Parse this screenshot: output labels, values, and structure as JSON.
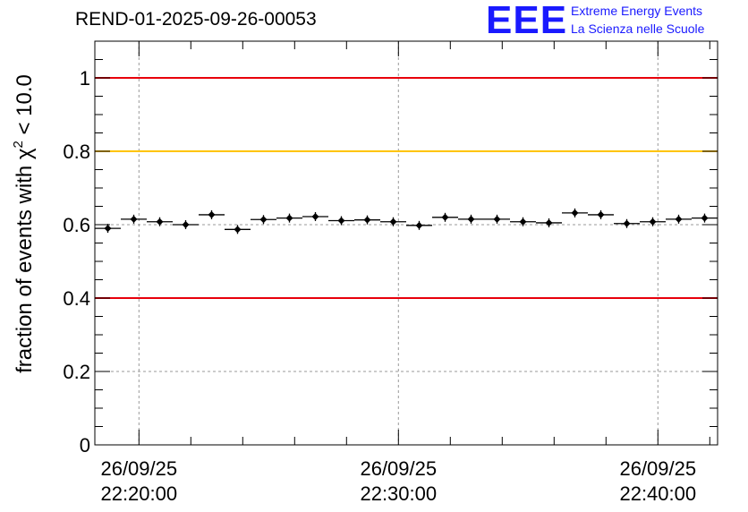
{
  "header": {
    "run_title": "REND-01-2025-09-26-00053",
    "logo_text": "EEE",
    "logo_line1": "Extreme Energy Events",
    "logo_line2": "La Scienza nelle Scuole",
    "logo_color": "#1a1aff"
  },
  "chart_data": {
    "type": "scatter",
    "title": "REND-01-2025-09-26-00053",
    "ylabel_prefix": "fraction of events with ",
    "ylabel_symbol": "χ",
    "ylabel_sup": "2",
    "ylabel_suffix": " < 10.0",
    "xlabel": "",
    "ylim": [
      0,
      1.1
    ],
    "yticks": [
      {
        "value": 0,
        "label": "0"
      },
      {
        "value": 0.2,
        "label": "0.2"
      },
      {
        "value": 0.4,
        "label": "0.4"
      },
      {
        "value": 0.6,
        "label": "0.6"
      },
      {
        "value": 0.8,
        "label": "0.8"
      },
      {
        "value": 1,
        "label": "1"
      }
    ],
    "xlim_minutes": [
      -1.7,
      22.3
    ],
    "xticks": [
      {
        "minutes": 0,
        "date": "26/09/25",
        "time": "22:20:00"
      },
      {
        "minutes": 10,
        "date": "26/09/25",
        "time": "22:30:00"
      },
      {
        "minutes": 20,
        "date": "26/09/25",
        "time": "22:40:00"
      }
    ],
    "x_origin": "22:20:00",
    "grid": true,
    "reference_lines": [
      {
        "value": 1.0,
        "color": "#e8000b",
        "name": "upper-limit"
      },
      {
        "value": 0.8,
        "color": "#ffc400",
        "name": "warning-level"
      },
      {
        "value": 0.4,
        "color": "#e8000b",
        "name": "lower-limit"
      }
    ],
    "bin_width_minutes": 1.0,
    "points": [
      {
        "minutes": -1.2,
        "value": 0.59
      },
      {
        "minutes": -0.2,
        "value": 0.615
      },
      {
        "minutes": 0.8,
        "value": 0.608
      },
      {
        "minutes": 1.8,
        "value": 0.6
      },
      {
        "minutes": 2.8,
        "value": 0.627
      },
      {
        "minutes": 3.8,
        "value": 0.587
      },
      {
        "minutes": 4.8,
        "value": 0.614
      },
      {
        "minutes": 5.8,
        "value": 0.618
      },
      {
        "minutes": 6.8,
        "value": 0.622
      },
      {
        "minutes": 7.8,
        "value": 0.611
      },
      {
        "minutes": 8.8,
        "value": 0.613
      },
      {
        "minutes": 9.8,
        "value": 0.608
      },
      {
        "minutes": 10.8,
        "value": 0.598
      },
      {
        "minutes": 11.8,
        "value": 0.62
      },
      {
        "minutes": 12.8,
        "value": 0.615
      },
      {
        "minutes": 13.8,
        "value": 0.615
      },
      {
        "minutes": 14.8,
        "value": 0.608
      },
      {
        "minutes": 15.8,
        "value": 0.605
      },
      {
        "minutes": 16.8,
        "value": 0.632
      },
      {
        "minutes": 17.8,
        "value": 0.627
      },
      {
        "minutes": 18.8,
        "value": 0.603
      },
      {
        "minutes": 19.8,
        "value": 0.608
      },
      {
        "minutes": 20.8,
        "value": 0.615
      },
      {
        "minutes": 21.8,
        "value": 0.618
      }
    ]
  }
}
